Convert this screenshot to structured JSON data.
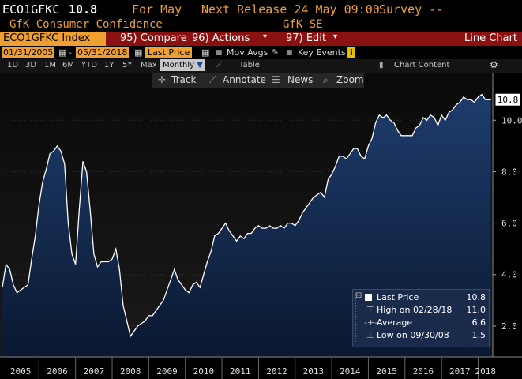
{
  "header": {
    "ticker": "ECO1GFKC",
    "value": "10.8",
    "for_label": "For May",
    "next_release": "Next Release 24 May 09:00",
    "survey": "Survey --"
  },
  "subheader": {
    "name": "GfK Consumer Confidence",
    "source": "GfK SE"
  },
  "menubar": {
    "index_label": "ECO1GFKC Index",
    "compare": "95) Compare",
    "actions": "96) Actions",
    "edit": "97) Edit",
    "chart_type": "Line Chart"
  },
  "controls": {
    "start_date": "01/31/2005",
    "end_date": "05/31/2018",
    "last_price": "Last Price",
    "mov_avgs": "Mov Avgs",
    "key_events": "Key Events",
    "info_badge": "i"
  },
  "range_bar": {
    "ranges": [
      "1D",
      "3D",
      "1M",
      "6M",
      "YTD",
      "1Y",
      "5Y",
      "Max"
    ],
    "period": "Monthly",
    "table": "Table",
    "chart_content": "Chart Content"
  },
  "toolbar": {
    "track": "Track",
    "annotate": "Annotate",
    "news": "News",
    "zoom": "Zoom"
  },
  "legend": {
    "last_price_label": "Last Price",
    "last_price_value": "10.8",
    "high_label": "High on 02/28/18",
    "high_value": "11.0",
    "average_label": "Average",
    "average_value": "6.6",
    "low_label": "Low on 09/30/08",
    "low_value": "1.5"
  },
  "colors": {
    "header_orange": "#f0a030",
    "menu_red": "#8b1010",
    "area_top": "#1e3c6c",
    "area_bottom": "#0a1830",
    "line": "#ffffff"
  },
  "chart_data": {
    "type": "area",
    "x_ticks": [
      "2005",
      "2006",
      "2007",
      "2008",
      "2009",
      "2010",
      "2011",
      "2012",
      "2013",
      "2014",
      "2015",
      "2016",
      "2017",
      "2018"
    ],
    "y_ticks": [
      "2.0",
      "4.0",
      "6.0",
      "8.0",
      "10.0"
    ],
    "ylim": [
      1.0,
      11.5
    ],
    "last_value_label": "10.8",
    "x_start": 2005.0,
    "x_end": 2018.4,
    "series": [
      {
        "values": [
          [
            2005.0,
            3.5
          ],
          [
            2005.1,
            4.4
          ],
          [
            2005.2,
            4.2
          ],
          [
            2005.3,
            3.6
          ],
          [
            2005.4,
            3.3
          ],
          [
            2005.5,
            3.4
          ],
          [
            2005.6,
            3.5
          ],
          [
            2005.7,
            3.6
          ],
          [
            2005.8,
            4.6
          ],
          [
            2005.9,
            5.5
          ],
          [
            2006.0,
            6.7
          ],
          [
            2006.1,
            7.6
          ],
          [
            2006.2,
            8.1
          ],
          [
            2006.3,
            8.7
          ],
          [
            2006.4,
            8.8
          ],
          [
            2006.5,
            9.0
          ],
          [
            2006.6,
            8.8
          ],
          [
            2006.7,
            8.3
          ],
          [
            2006.8,
            6.0
          ],
          [
            2006.9,
            4.8
          ],
          [
            2007.0,
            4.4
          ],
          [
            2007.1,
            6.5
          ],
          [
            2007.2,
            8.4
          ],
          [
            2007.3,
            8.0
          ],
          [
            2007.4,
            6.5
          ],
          [
            2007.5,
            4.8
          ],
          [
            2007.6,
            4.3
          ],
          [
            2007.7,
            4.5
          ],
          [
            2007.8,
            4.5
          ],
          [
            2007.9,
            4.5
          ],
          [
            2008.0,
            4.6
          ],
          [
            2008.1,
            5.0
          ],
          [
            2008.2,
            4.2
          ],
          [
            2008.3,
            2.8
          ],
          [
            2008.4,
            2.2
          ],
          [
            2008.5,
            1.6
          ],
          [
            2008.6,
            1.8
          ],
          [
            2008.7,
            2.0
          ],
          [
            2008.8,
            2.1
          ],
          [
            2008.9,
            2.2
          ],
          [
            2009.0,
            2.4
          ],
          [
            2009.1,
            2.4
          ],
          [
            2009.2,
            2.6
          ],
          [
            2009.3,
            2.8
          ],
          [
            2009.4,
            3.0
          ],
          [
            2009.5,
            3.4
          ],
          [
            2009.6,
            3.8
          ],
          [
            2009.7,
            4.2
          ],
          [
            2009.8,
            3.8
          ],
          [
            2009.9,
            3.6
          ],
          [
            2010.0,
            3.4
          ],
          [
            2010.1,
            3.3
          ],
          [
            2010.2,
            3.6
          ],
          [
            2010.3,
            3.7
          ],
          [
            2010.4,
            3.5
          ],
          [
            2010.5,
            4.0
          ],
          [
            2010.6,
            4.5
          ],
          [
            2010.7,
            4.9
          ],
          [
            2010.8,
            5.5
          ],
          [
            2010.9,
            5.6
          ],
          [
            2011.0,
            5.8
          ],
          [
            2011.1,
            6.0
          ],
          [
            2011.2,
            5.7
          ],
          [
            2011.3,
            5.5
          ],
          [
            2011.4,
            5.3
          ],
          [
            2011.5,
            5.5
          ],
          [
            2011.6,
            5.4
          ],
          [
            2011.7,
            5.6
          ],
          [
            2011.8,
            5.6
          ],
          [
            2011.9,
            5.8
          ],
          [
            2012.0,
            5.9
          ],
          [
            2012.1,
            5.8
          ],
          [
            2012.2,
            5.8
          ],
          [
            2012.3,
            5.9
          ],
          [
            2012.4,
            5.8
          ],
          [
            2012.5,
            5.8
          ],
          [
            2012.6,
            5.9
          ],
          [
            2012.7,
            5.8
          ],
          [
            2012.8,
            6.0
          ],
          [
            2012.9,
            6.0
          ],
          [
            2013.0,
            5.9
          ],
          [
            2013.1,
            6.1
          ],
          [
            2013.2,
            6.4
          ],
          [
            2013.3,
            6.6
          ],
          [
            2013.4,
            6.8
          ],
          [
            2013.5,
            7.0
          ],
          [
            2013.6,
            7.1
          ],
          [
            2013.7,
            7.2
          ],
          [
            2013.8,
            7.0
          ],
          [
            2013.9,
            7.7
          ],
          [
            2014.0,
            7.9
          ],
          [
            2014.1,
            8.2
          ],
          [
            2014.2,
            8.6
          ],
          [
            2014.3,
            8.6
          ],
          [
            2014.4,
            8.5
          ],
          [
            2014.5,
            8.7
          ],
          [
            2014.6,
            8.9
          ],
          [
            2014.7,
            8.9
          ],
          [
            2014.8,
            8.6
          ],
          [
            2014.9,
            8.5
          ],
          [
            2015.0,
            9.0
          ],
          [
            2015.1,
            9.3
          ],
          [
            2015.2,
            9.9
          ],
          [
            2015.3,
            10.2
          ],
          [
            2015.4,
            10.1
          ],
          [
            2015.5,
            10.2
          ],
          [
            2015.6,
            10.0
          ],
          [
            2015.7,
            9.9
          ],
          [
            2015.8,
            9.6
          ],
          [
            2015.9,
            9.4
          ],
          [
            2016.0,
            9.4
          ],
          [
            2016.1,
            9.4
          ],
          [
            2016.2,
            9.4
          ],
          [
            2016.3,
            9.7
          ],
          [
            2016.4,
            9.8
          ],
          [
            2016.5,
            10.1
          ],
          [
            2016.6,
            10.0
          ],
          [
            2016.7,
            10.2
          ],
          [
            2016.8,
            10.1
          ],
          [
            2016.9,
            9.8
          ],
          [
            2017.0,
            10.2
          ],
          [
            2017.1,
            10.0
          ],
          [
            2017.2,
            10.3
          ],
          [
            2017.3,
            10.4
          ],
          [
            2017.4,
            10.6
          ],
          [
            2017.5,
            10.7
          ],
          [
            2017.6,
            10.9
          ],
          [
            2017.7,
            10.8
          ],
          [
            2017.8,
            10.8
          ],
          [
            2017.9,
            10.7
          ],
          [
            2018.0,
            10.9
          ],
          [
            2018.1,
            11.0
          ],
          [
            2018.2,
            10.8
          ],
          [
            2018.3,
            10.8
          ],
          [
            2018.35,
            10.8
          ]
        ]
      }
    ]
  }
}
